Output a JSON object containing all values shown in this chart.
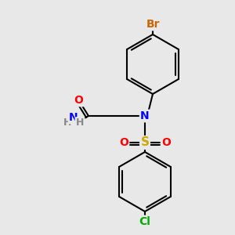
{
  "bg_color": "#e8e8e8",
  "bond_color": "#000000",
  "bond_width": 1.5,
  "atom_colors": {
    "Br": "#cc6600",
    "Cl": "#00aa00",
    "N": "#0000ff",
    "O": "#ff0000",
    "S": "#ccaa00",
    "H": "#888888",
    "C": "#000000"
  },
  "font_size": 9,
  "font_size_small": 8
}
